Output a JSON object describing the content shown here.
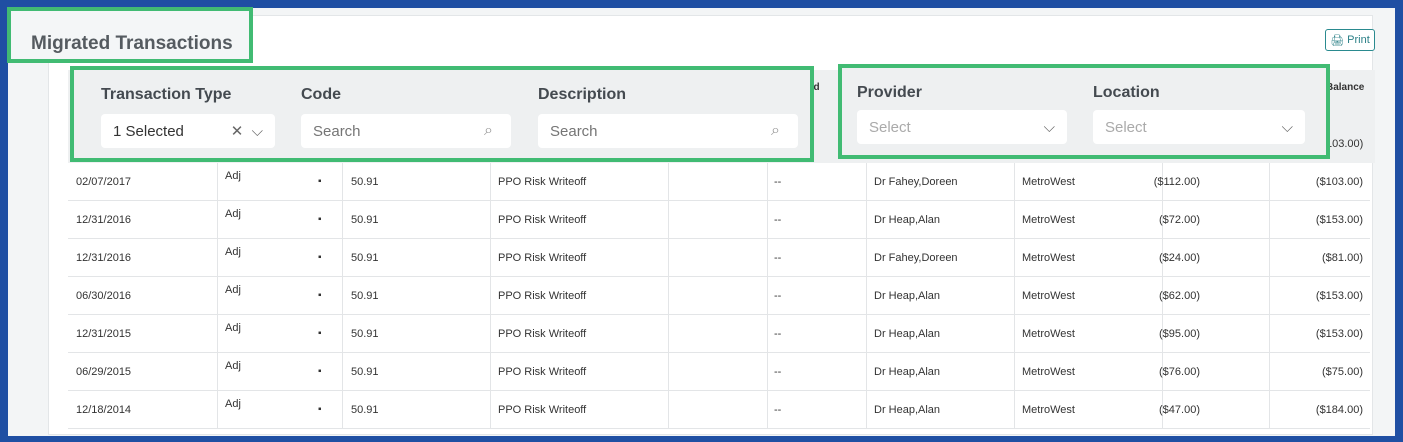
{
  "title": "Migrated Transactions",
  "print_label": "Print",
  "hidden_headers": {
    "partial1": "ad",
    "balance": "Balance"
  },
  "partial_row_balance": "103.00)",
  "filters": {
    "transaction_type": {
      "label": "Transaction Type",
      "value": "1 Selected"
    },
    "code": {
      "label": "Code",
      "placeholder": "Search"
    },
    "description": {
      "label": "Description",
      "placeholder": "Search"
    },
    "provider": {
      "label": "Provider",
      "placeholder": "Select"
    },
    "location": {
      "label": "Location",
      "placeholder": "Select"
    }
  },
  "rows": [
    {
      "date": "02/07/2017",
      "type": "Adj",
      "code": "50.91",
      "desc": "PPO Risk Writeoff",
      "dash": "--",
      "provider": "Dr Fahey,Doreen",
      "location": "MetroWest",
      "amount": "($112.00)",
      "balance": "($103.00)"
    },
    {
      "date": "12/31/2016",
      "type": "Adj",
      "code": "50.91",
      "desc": "PPO Risk Writeoff",
      "dash": "--",
      "provider": "Dr Heap,Alan",
      "location": "MetroWest",
      "amount": "($72.00)",
      "balance": "($153.00)"
    },
    {
      "date": "12/31/2016",
      "type": "Adj",
      "code": "50.91",
      "desc": "PPO Risk Writeoff",
      "dash": "--",
      "provider": "Dr Fahey,Doreen",
      "location": "MetroWest",
      "amount": "($24.00)",
      "balance": "($81.00)"
    },
    {
      "date": "06/30/2016",
      "type": "Adj",
      "code": "50.91",
      "desc": "PPO Risk Writeoff",
      "dash": "--",
      "provider": "Dr Heap,Alan",
      "location": "MetroWest",
      "amount": "($62.00)",
      "balance": "($153.00)"
    },
    {
      "date": "12/31/2015",
      "type": "Adj",
      "code": "50.91",
      "desc": "PPO Risk Writeoff",
      "dash": "--",
      "provider": "Dr Heap,Alan",
      "location": "MetroWest",
      "amount": "($95.00)",
      "balance": "($153.00)"
    },
    {
      "date": "06/29/2015",
      "type": "Adj",
      "code": "50.91",
      "desc": "PPO Risk Writeoff",
      "dash": "--",
      "provider": "Dr Heap,Alan",
      "location": "MetroWest",
      "amount": "($76.00)",
      "balance": "($75.00)"
    },
    {
      "date": "12/18/2014",
      "type": "Adj",
      "code": "50.91",
      "desc": "PPO Risk Writeoff",
      "dash": "--",
      "provider": "Dr Heap,Alan",
      "location": "MetroWest",
      "amount": "($47.00)",
      "balance": "($184.00)"
    }
  ],
  "colors": {
    "accent": "#41bb73",
    "frame": "#1f4fa3",
    "print": "#2a7f86"
  }
}
